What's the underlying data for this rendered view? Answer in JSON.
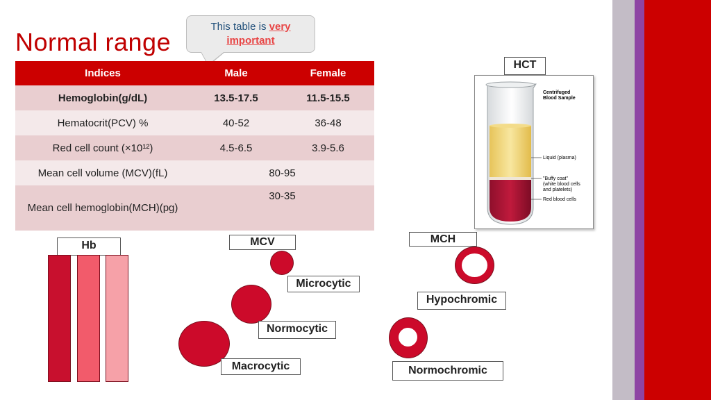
{
  "slide": {
    "title": "Normal range",
    "callout": {
      "prefix": "This table is ",
      "highlight": "very important"
    }
  },
  "table": {
    "headers": [
      "Indices",
      "Male",
      "Female"
    ],
    "rows": [
      {
        "index": "Hemoglobin(g/dL)",
        "male": "13.5-17.5",
        "female": "11.5-15.5"
      },
      {
        "index": "Hematocrit(PCV) %",
        "male": "40-52",
        "female": "36-48"
      },
      {
        "index": "Red cell count (×10¹²)",
        "male": "4.5-6.5",
        "female": "3.9-5.6"
      },
      {
        "index": "Mean cell volume (MCV)(fL)",
        "shared": "80-95"
      },
      {
        "index": "Mean cell hemoglobin(MCH)(pg)",
        "shared": "30-35"
      }
    ]
  },
  "hct": {
    "label": "HCT",
    "image_title": "Centrifuged Blood Sample",
    "plasma_label": "Liquid (plasma)",
    "buffy_label": "\"Buffy coat\" (white blood cells and platelets)",
    "rbc_label": "Red blood cells"
  },
  "hb": {
    "label": "Hb",
    "bars": [
      "#c8102e",
      "#f25b6b",
      "#f6a1a8"
    ]
  },
  "mcv": {
    "label": "MCV",
    "micro": "Microcytic",
    "normo": "Normocytic",
    "macro": "Macrocytic"
  },
  "mch": {
    "label": "MCH",
    "hypo": "Hypochromic",
    "normo": "Normochromic"
  },
  "colors": {
    "accent_red": "#cc0000",
    "purple": "#8e44a4",
    "grey": "#c3bcc6",
    "cell_red": "#cc0a2a"
  }
}
